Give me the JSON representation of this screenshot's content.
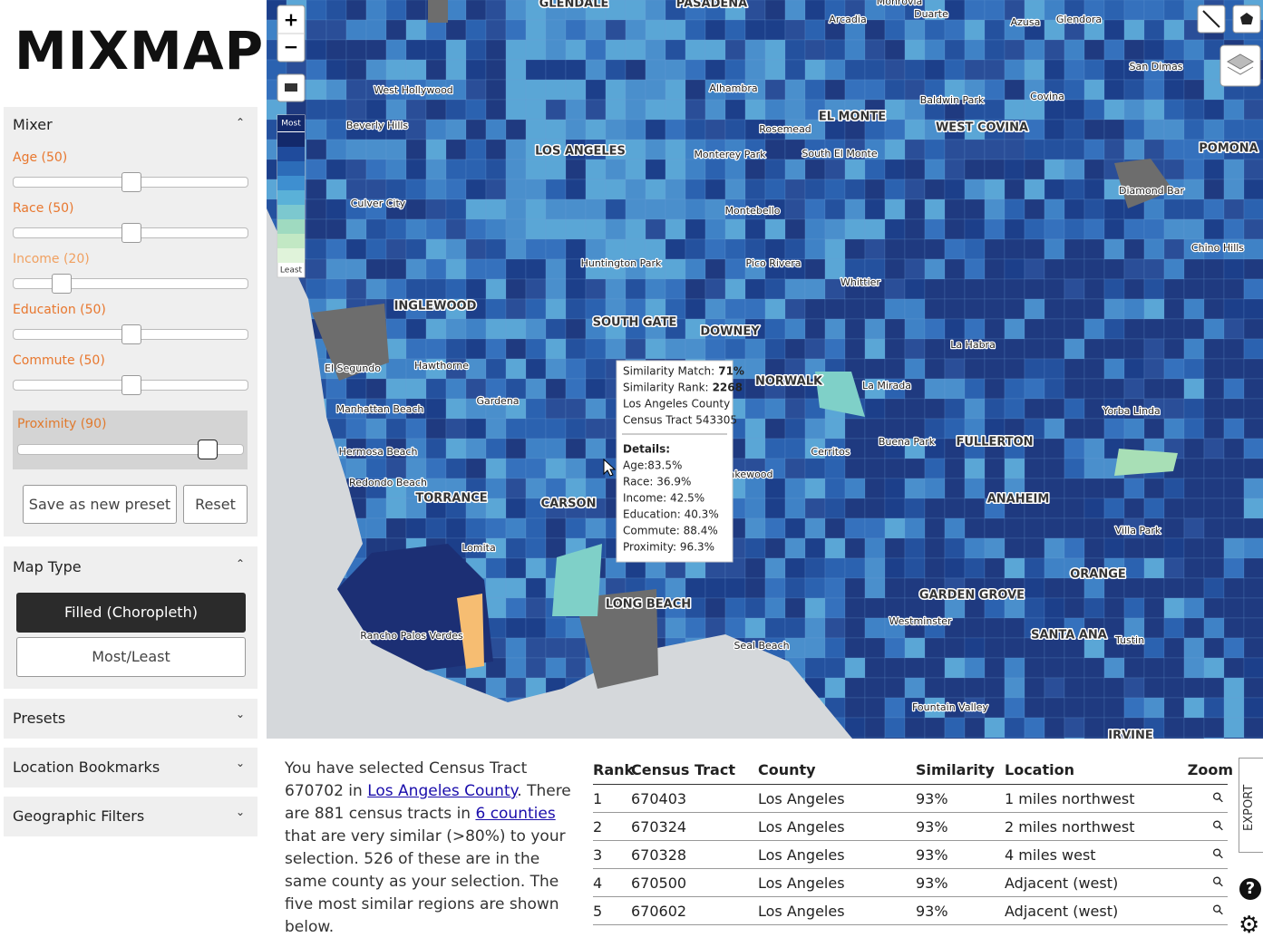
{
  "sidebar": {
    "logo": "MIXMAP",
    "mixer": {
      "title": "Mixer",
      "sliders": [
        {
          "label": "Age (50)",
          "value": 50
        },
        {
          "label": "Race (50)",
          "value": 50
        },
        {
          "label": "Income (20)",
          "value": 20
        },
        {
          "label": "Education (50)",
          "value": 50
        },
        {
          "label": "Commute (50)",
          "value": 50
        }
      ],
      "proximity": {
        "label": "Proximity (90)",
        "value": 90
      },
      "buttons": [
        "Save as new preset",
        "Reset"
      ]
    },
    "map_type": {
      "title": "Map Type",
      "options": [
        "Filled (Choropleth)",
        "Most/Least"
      ]
    },
    "sections": [
      "Presets",
      "Location Bookmarks",
      "Geographic Filters"
    ]
  },
  "map": {
    "legend": {
      "top": "Most",
      "bottom": "Least",
      "colors": [
        "#13296b",
        "#1f4b9c",
        "#2c6cb8",
        "#3e8fd0",
        "#5ab1d8",
        "#7cc8cf",
        "#9fdac0",
        "#c2e8c4",
        "#e0f3da"
      ]
    },
    "labels": [
      "GLENDALE",
      "PASADENA",
      "Monrovia",
      "Duarte",
      "Arcadia",
      "Azusa",
      "Glendora",
      "San Dimas",
      "West Hollywood",
      "Alhambra",
      "Baldwin Park",
      "Covina",
      "Beverly Hills",
      "EL MONTE",
      "Rosemead",
      "WEST COVINA",
      "LOS ANGELES",
      "Monterey Park",
      "South El Monte",
      "POMONA",
      "Diamond Bar",
      "Culver City",
      "Montebello",
      "Chino Hills",
      "Huntington Park",
      "Pico Rivera",
      "Whittier",
      "INGLEWOOD",
      "SOUTH GATE",
      "DOWNEY",
      "La Habra",
      "El Segundo",
      "Hawthorne",
      "NORWALK",
      "La Mirada",
      "Manhattan Beach",
      "Gardena",
      "Yorba Linda",
      "Cerritos",
      "Buena Park",
      "FULLERTON",
      "Hermosa Beach",
      "Lakewood",
      "Redondo Beach",
      "TORRANCE",
      "CARSON",
      "ANAHEIM",
      "Villa Park",
      "Lomita",
      "ORANGE",
      "LONG BEACH",
      "GARDEN GROVE",
      "Westminster",
      "Rancho Palos Verdes",
      "SANTA ANA",
      "Tustin",
      "Seal Beach",
      "Fountain Valley",
      "IRVINE"
    ],
    "tooltip": {
      "lines": [
        {
          "label": "Similarity Match:",
          "value": "71%"
        },
        {
          "label": "Similarity Rank:",
          "value": "2268"
        }
      ],
      "county": "Los Angeles County",
      "tract": "Census Tract 543305",
      "details_title": "Details:",
      "details": [
        "Age:83.5%",
        "Race: 36.9%",
        "Income: 42.5%",
        "Education: 40.3%",
        "Commute: 88.4%",
        "Proximity: 96.3%"
      ]
    }
  },
  "summary": {
    "parts": [
      "You have selected Census Tract 670702 in ",
      "Los Angeles County",
      ". There are 881 census tracts in ",
      "6 counties",
      " that are very similar (>80%) to your selection. 526 of these are in the same county as your selection. The five most similar regions are shown below."
    ]
  },
  "table": {
    "columns": [
      "Rank",
      "Census Tract",
      "County",
      "Similarity",
      "Location",
      "Zoom"
    ],
    "rows": [
      [
        "1",
        "670403",
        "Los Angeles",
        "93%",
        "1 miles northwest"
      ],
      [
        "2",
        "670324",
        "Los Angeles",
        "93%",
        "2 miles northwest"
      ],
      [
        "3",
        "670328",
        "Los Angeles",
        "93%",
        "4 miles west"
      ],
      [
        "4",
        "670500",
        "Los Angeles",
        "93%",
        "Adjacent (west)"
      ],
      [
        "5",
        "670602",
        "Los Angeles",
        "93%",
        "Adjacent (west)"
      ]
    ]
  },
  "export": "EXPORT"
}
